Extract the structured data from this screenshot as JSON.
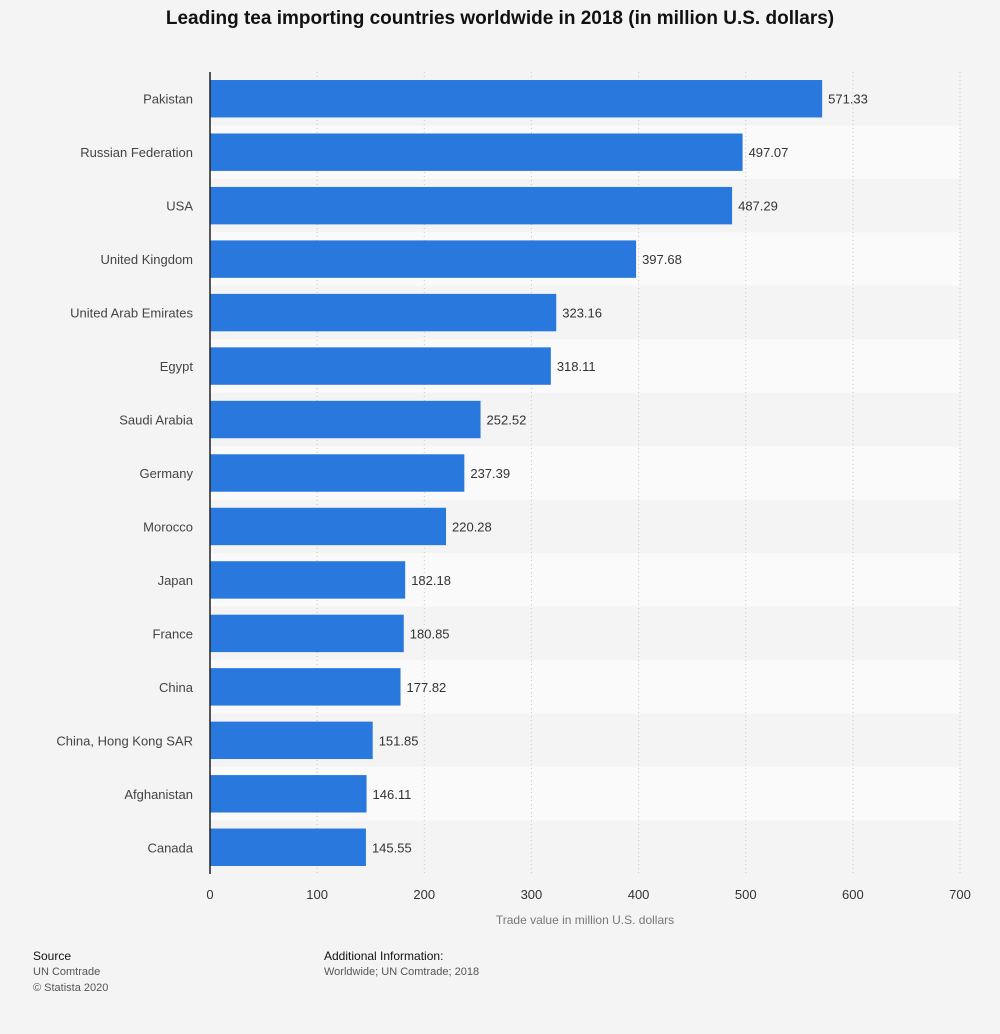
{
  "title": "Leading tea importing countries worldwide in 2018 (in million U.S. dollars)",
  "chart_data": {
    "type": "bar",
    "orientation": "horizontal",
    "title": "Leading tea importing countries worldwide in 2018 (in million U.S. dollars)",
    "xlabel": "Trade value in million U.S. dollars",
    "ylabel": "",
    "categories": [
      "Pakistan",
      "Russian Federation",
      "USA",
      "United Kingdom",
      "United Arab Emirates",
      "Egypt",
      "Saudi Arabia",
      "Germany",
      "Morocco",
      "Japan",
      "France",
      "China",
      "China, Hong Kong SAR",
      "Afghanistan",
      "Canada"
    ],
    "values": [
      571.33,
      497.07,
      487.29,
      397.68,
      323.16,
      318.11,
      252.52,
      237.39,
      220.28,
      182.18,
      180.85,
      177.82,
      151.85,
      146.11,
      145.55
    ],
    "value_labels": [
      "571.33",
      "497.07",
      "487.29",
      "397.68",
      "323.16",
      "318.11",
      "252.52",
      "237.39",
      "220.28",
      "182.18",
      "180.85",
      "177.82",
      "151.85",
      "146.11",
      "145.55"
    ],
    "xlim": [
      0,
      700
    ],
    "xticks": [
      0,
      100,
      200,
      300,
      400,
      500,
      600,
      700
    ],
    "grid": true,
    "bar_color": "#2878dd"
  },
  "footer": {
    "source_heading": "Source",
    "source_line1": "UN Comtrade",
    "source_line2": "© Statista 2020",
    "info_heading": "Additional Information:",
    "info_line": "Worldwide; UN Comtrade; 2018"
  }
}
